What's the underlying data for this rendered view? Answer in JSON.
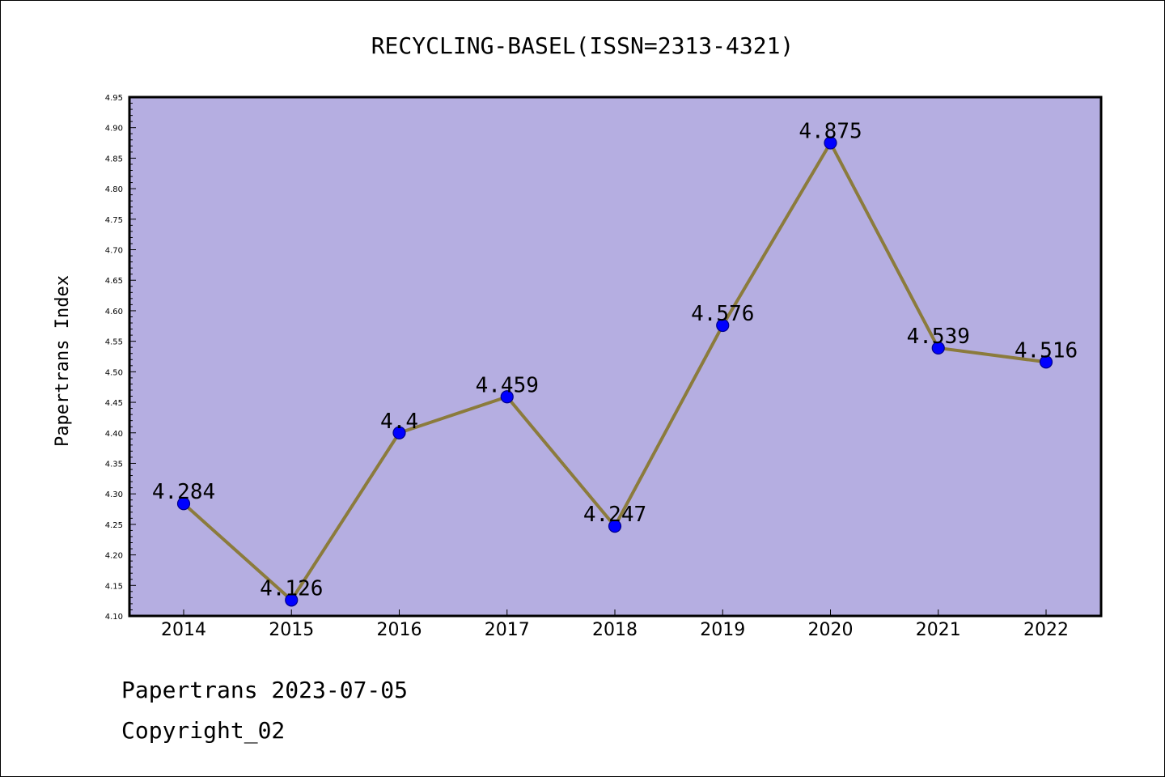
{
  "colors": {
    "plot_background": "#b5aee1",
    "line": "#8b7b3c",
    "marker_fill": "#0000ff",
    "marker_edge": "#00008b",
    "axes": "#000000"
  },
  "footer": {
    "date_line": "Papertrans 2023-07-05",
    "copyright_line": "Copyright_02"
  },
  "chart_data": {
    "type": "line",
    "title": "RECYCLING-BASEL(ISSN=2313-4321)",
    "xlabel": "",
    "ylabel": "Papertrans Index",
    "categories": [
      "2014",
      "2015",
      "2016",
      "2017",
      "2018",
      "2019",
      "2020",
      "2021",
      "2022"
    ],
    "series": [
      {
        "values": [
          4.284,
          4.126,
          4.4,
          4.459,
          4.247,
          4.576,
          4.875,
          4.539,
          4.516
        ],
        "labels": [
          "4.284",
          "4.126",
          "4.4",
          "4.459",
          "4.247",
          "4.576",
          "4.875",
          "4.539",
          "4.516"
        ]
      }
    ],
    "ylim": [
      4.1,
      4.95
    ],
    "yticks": [
      "4.10",
      "4.15",
      "4.20",
      "4.25",
      "4.30",
      "4.35",
      "4.40",
      "4.45",
      "4.50",
      "4.55",
      "4.60",
      "4.65",
      "4.70",
      "4.75",
      "4.80",
      "4.85",
      "4.90",
      "4.95"
    ],
    "grid": false,
    "legend": "none"
  }
}
